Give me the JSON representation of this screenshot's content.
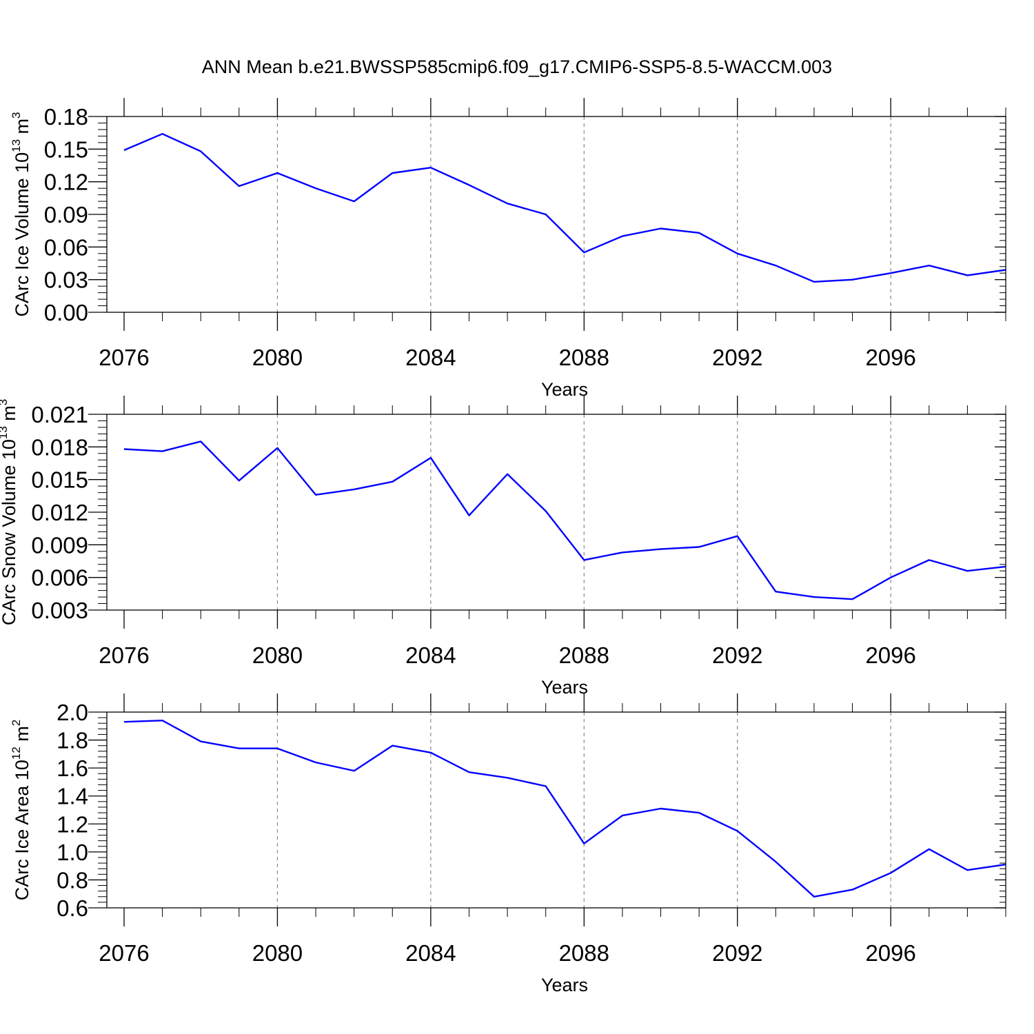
{
  "figure": {
    "title": "ANN Mean b.e21.BWSSP585cmip6.f09_g17.CMIP6-SSP5-8.5-WACCM.003"
  },
  "chart_data": [
    {
      "type": "line",
      "title": "",
      "xlabel": "Years",
      "ylabel": "CArc Ice Volume 10",
      "ylabel_sup": "13",
      "ylabel_unit": "m",
      "ylabel_unit_sup": "3",
      "xlim": [
        2075.56,
        2099.0
      ],
      "ylim": [
        0.0,
        0.18
      ],
      "xticks": [
        2076,
        2080,
        2084,
        2088,
        2092,
        2096
      ],
      "xtick_labels": [
        "2076",
        "2080",
        "2084",
        "2088",
        "2092",
        "2096"
      ],
      "yticks": [
        0.0,
        0.03,
        0.06,
        0.09,
        0.12,
        0.15,
        0.18
      ],
      "ytick_labels": [
        "0.00",
        "0.03",
        "0.06",
        "0.09",
        "0.12",
        "0.15",
        "0.18"
      ],
      "grid": "vertical dashed at major x ticks",
      "series": [
        {
          "color": "#0000ff",
          "x": [
            2076,
            2077,
            2078,
            2079,
            2080,
            2081,
            2082,
            2083,
            2084,
            2085,
            2086,
            2087,
            2088,
            2089,
            2090,
            2091,
            2092,
            2093,
            2094,
            2095,
            2096,
            2097,
            2098,
            2099
          ],
          "y": [
            0.149,
            0.164,
            0.148,
            0.116,
            0.128,
            0.114,
            0.102,
            0.128,
            0.133,
            0.117,
            0.1,
            0.09,
            0.055,
            0.07,
            0.077,
            0.073,
            0.054,
            0.043,
            0.028,
            0.03,
            0.036,
            0.043,
            0.034,
            0.039
          ]
        }
      ]
    },
    {
      "type": "line",
      "title": "",
      "xlabel": "Years",
      "ylabel": "CArc Snow Volume 10",
      "ylabel_sup": "13",
      "ylabel_unit": "m",
      "ylabel_unit_sup": "3",
      "xlim": [
        2075.56,
        2099.0
      ],
      "ylim": [
        0.003,
        0.021
      ],
      "xticks": [
        2076,
        2080,
        2084,
        2088,
        2092,
        2096
      ],
      "xtick_labels": [
        "2076",
        "2080",
        "2084",
        "2088",
        "2092",
        "2096"
      ],
      "yticks": [
        0.003,
        0.006,
        0.009,
        0.012,
        0.015,
        0.018,
        0.021
      ],
      "ytick_labels": [
        "0.003",
        "0.006",
        "0.009",
        "0.012",
        "0.015",
        "0.018",
        "0.021"
      ],
      "grid": "vertical dashed at major x ticks",
      "series": [
        {
          "color": "#0000ff",
          "x": [
            2076,
            2077,
            2078,
            2079,
            2080,
            2081,
            2082,
            2083,
            2084,
            2085,
            2086,
            2087,
            2088,
            2089,
            2090,
            2091,
            2092,
            2093,
            2094,
            2095,
            2096,
            2097,
            2098,
            2099
          ],
          "y": [
            0.0178,
            0.0176,
            0.0185,
            0.0149,
            0.0179,
            0.0136,
            0.0141,
            0.0148,
            0.017,
            0.0117,
            0.0155,
            0.0121,
            0.0076,
            0.0083,
            0.0086,
            0.0088,
            0.0098,
            0.0047,
            0.0042,
            0.004,
            0.006,
            0.0076,
            0.0066,
            0.007
          ]
        }
      ]
    },
    {
      "type": "line",
      "title": "",
      "xlabel": "Years",
      "ylabel": "CArc Ice Area 10",
      "ylabel_sup": "12",
      "ylabel_unit": "m",
      "ylabel_unit_sup": "2",
      "xlim": [
        2075.56,
        2099.0
      ],
      "ylim": [
        0.6,
        2.0
      ],
      "xticks": [
        2076,
        2080,
        2084,
        2088,
        2092,
        2096
      ],
      "xtick_labels": [
        "2076",
        "2080",
        "2084",
        "2088",
        "2092",
        "2096"
      ],
      "yticks": [
        0.6,
        0.8,
        1.0,
        1.2,
        1.4,
        1.6,
        1.8,
        2.0
      ],
      "ytick_labels": [
        "0.6",
        "0.8",
        "1.0",
        "1.2",
        "1.4",
        "1.6",
        "1.8",
        "2.0"
      ],
      "grid": "vertical dashed at major x ticks",
      "series": [
        {
          "color": "#0000ff",
          "x": [
            2076,
            2077,
            2078,
            2079,
            2080,
            2081,
            2082,
            2083,
            2084,
            2085,
            2086,
            2087,
            2088,
            2089,
            2090,
            2091,
            2092,
            2093,
            2094,
            2095,
            2096,
            2097,
            2098,
            2099
          ],
          "y": [
            1.93,
            1.94,
            1.79,
            1.74,
            1.74,
            1.64,
            1.58,
            1.76,
            1.71,
            1.57,
            1.53,
            1.47,
            1.06,
            1.26,
            1.31,
            1.28,
            1.15,
            0.93,
            0.68,
            0.73,
            0.85,
            1.02,
            0.87,
            0.91
          ]
        }
      ]
    }
  ]
}
